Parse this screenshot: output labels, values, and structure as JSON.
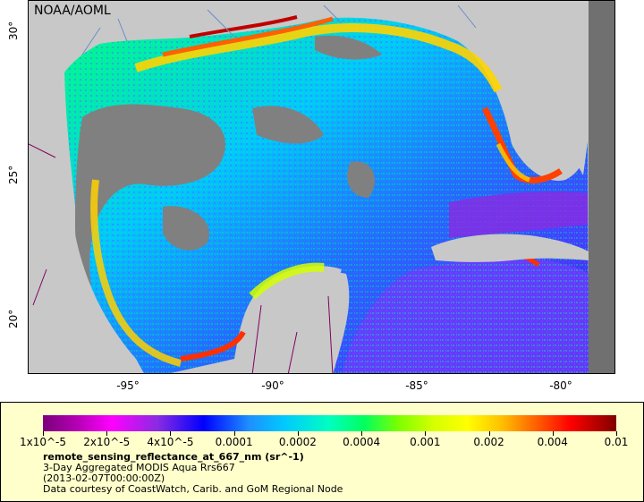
{
  "map": {
    "watermark": "NOAA/AOML",
    "x_ticks": [
      "-95°",
      "-90°",
      "-85°",
      "-80°"
    ],
    "y_ticks": [
      "30°",
      "25°",
      "20°"
    ],
    "colors": {
      "land": "#c8c8c8",
      "no_data": "#808080",
      "borders": "#800060",
      "rivers": "#6a8cc8"
    }
  },
  "legend": {
    "scale_labels": [
      "1x10^-5",
      "2x10^-5",
      "4x10^-5",
      "0.0001",
      "0.0002",
      "0.0004",
      "0.001",
      "0.002",
      "0.004",
      "0.01"
    ],
    "title": "remote_sensing_reflectance_at_667_nm (sr^-1)",
    "line1": "3-Day Aggregated MODIS Aqua Rrs667",
    "line2": "(2013-02-07T00:00:00Z)",
    "line3": "Data courtesy of CoastWatch, Carib. and GoM Regional Node"
  }
}
